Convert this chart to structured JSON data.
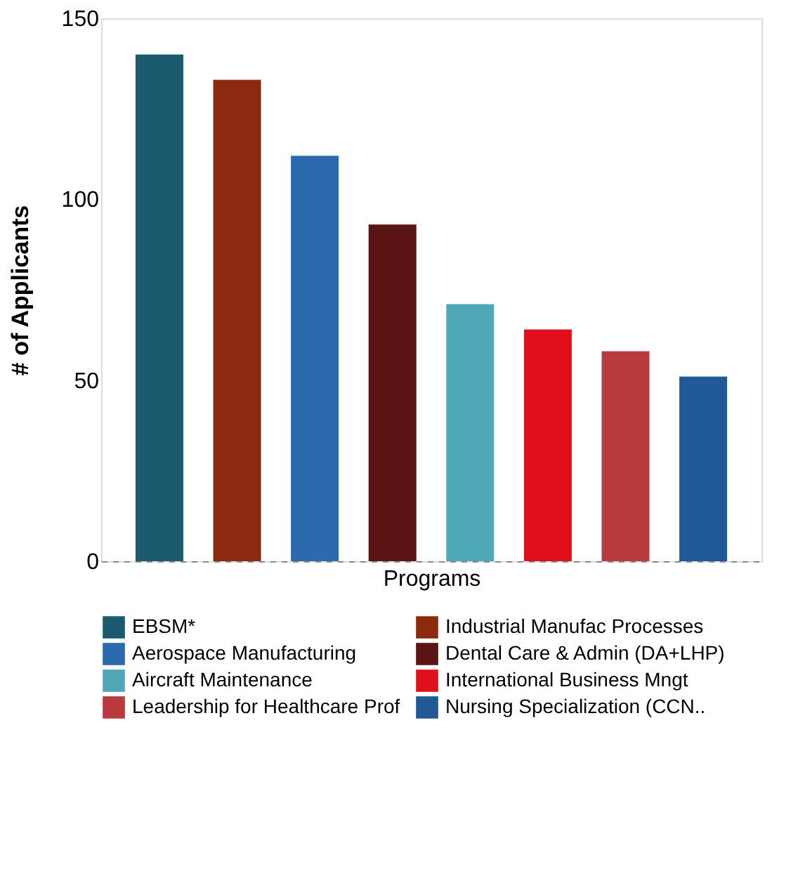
{
  "chart_data": {
    "type": "bar",
    "xlabel": "Programs",
    "ylabel": "# of Applicants",
    "categories": [
      null,
      null,
      null,
      null,
      null,
      null,
      null,
      null
    ],
    "series": [
      {
        "name": "EBSM*",
        "color": "#1b5a6e",
        "values": [
          140,
          null,
          null,
          null,
          null,
          null,
          null,
          null
        ]
      },
      {
        "name": "Industrial Manufac Processes",
        "color": "#8b2a0e",
        "values": [
          null,
          133,
          null,
          null,
          null,
          null,
          null,
          null
        ]
      },
      {
        "name": "Aerospace Manufacturing",
        "color": "#2a6aad",
        "values": [
          null,
          null,
          112,
          null,
          null,
          null,
          null,
          null
        ]
      },
      {
        "name": "Dental Care & Admin (DA+LHP)",
        "color": "#5a1414",
        "values": [
          null,
          null,
          null,
          93,
          null,
          null,
          null,
          null
        ]
      },
      {
        "name": "Aircraft Maintenance",
        "color": "#4fa8b8",
        "values": [
          null,
          null,
          null,
          null,
          71,
          null,
          null,
          null
        ]
      },
      {
        "name": "International Business Mngt",
        "color": "#e0101a",
        "values": [
          null,
          null,
          null,
          null,
          null,
          64,
          null,
          null
        ]
      },
      {
        "name": "Leadership for Healthcare Prof",
        "color": "#b83a3c",
        "values": [
          null,
          null,
          null,
          null,
          null,
          null,
          58,
          null
        ]
      },
      {
        "name": "Nursing Specialization (CCN..",
        "color": "#1f5a96",
        "values": [
          null,
          null,
          null,
          null,
          null,
          null,
          null,
          51
        ]
      }
    ],
    "ylim": [
      0,
      150
    ],
    "yticks": [
      0,
      50,
      100,
      150
    ],
    "grid": false,
    "legend": "bottom",
    "tick_labels": "y"
  }
}
